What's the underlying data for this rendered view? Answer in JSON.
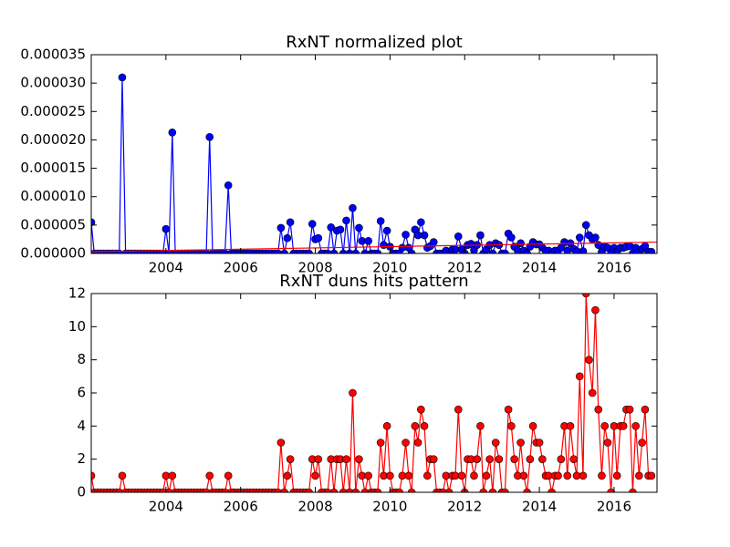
{
  "chart_data": [
    {
      "type": "line",
      "title": "RxNT normalized plot",
      "x": [
        2002.0,
        2002.08,
        2002.17,
        2002.25,
        2002.33,
        2002.42,
        2002.5,
        2002.58,
        2002.67,
        2002.75,
        2002.83,
        2002.92,
        2003.0,
        2003.08,
        2003.17,
        2003.25,
        2003.33,
        2003.42,
        2003.5,
        2003.58,
        2003.67,
        2003.75,
        2003.83,
        2003.92,
        2004.0,
        2004.08,
        2004.17,
        2004.25,
        2004.33,
        2004.42,
        2004.5,
        2004.58,
        2004.67,
        2004.75,
        2004.83,
        2004.92,
        2005.0,
        2005.08,
        2005.17,
        2005.25,
        2005.33,
        2005.42,
        2005.5,
        2005.58,
        2005.67,
        2005.75,
        2005.83,
        2005.92,
        2006.0,
        2006.08,
        2006.17,
        2006.25,
        2006.33,
        2006.42,
        2006.5,
        2006.58,
        2006.67,
        2006.75,
        2006.83,
        2006.92,
        2007.0,
        2007.08,
        2007.17,
        2007.25,
        2007.33,
        2007.42,
        2007.5,
        2007.58,
        2007.67,
        2007.75,
        2007.83,
        2007.92,
        2008.0,
        2008.08,
        2008.17,
        2008.25,
        2008.33,
        2008.42,
        2008.5,
        2008.58,
        2008.67,
        2008.75,
        2008.83,
        2008.92,
        2009.0,
        2009.08,
        2009.17,
        2009.25,
        2009.33,
        2009.42,
        2009.5,
        2009.58,
        2009.67,
        2009.75,
        2009.83,
        2009.92,
        2010.0,
        2010.08,
        2010.17,
        2010.25,
        2010.33,
        2010.42,
        2010.5,
        2010.58,
        2010.67,
        2010.75,
        2010.83,
        2010.92,
        2011.0,
        2011.08,
        2011.17,
        2011.25,
        2011.33,
        2011.42,
        2011.5,
        2011.58,
        2011.67,
        2011.75,
        2011.83,
        2011.92,
        2012.0,
        2012.08,
        2012.17,
        2012.25,
        2012.33,
        2012.42,
        2012.5,
        2012.58,
        2012.67,
        2012.75,
        2012.83,
        2012.92,
        2013.0,
        2013.08,
        2013.17,
        2013.25,
        2013.33,
        2013.42,
        2013.5,
        2013.58,
        2013.67,
        2013.75,
        2013.83,
        2013.92,
        2014.0,
        2014.08,
        2014.17,
        2014.25,
        2014.33,
        2014.42,
        2014.5,
        2014.58,
        2014.67,
        2014.75,
        2014.83,
        2014.92,
        2015.0,
        2015.08,
        2015.17,
        2015.25,
        2015.33,
        2015.42,
        2015.5,
        2015.58,
        2015.67,
        2015.75,
        2015.83,
        2015.92,
        2016.0,
        2016.08,
        2016.17,
        2016.25,
        2016.33,
        2016.42,
        2016.5,
        2016.58,
        2016.67,
        2016.75,
        2016.83,
        2016.92,
        2017.0
      ],
      "series": [
        {
          "color": "#0000ff",
          "marker": true,
          "values": [
            5.5e-06,
            0,
            0,
            0,
            0,
            0,
            0,
            0,
            0,
            0,
            3.1e-05,
            0,
            0,
            0,
            0,
            0,
            0,
            0,
            0,
            0,
            0,
            0,
            0,
            0,
            4.3e-06,
            0,
            2.13e-05,
            0,
            0,
            0,
            0,
            0,
            0,
            0,
            0,
            0,
            0,
            0,
            2.05e-05,
            0,
            0,
            0,
            0,
            0,
            1.2e-05,
            0,
            0,
            0,
            0,
            0,
            0,
            0,
            0,
            0,
            0,
            0,
            0,
            0,
            0,
            0,
            0,
            4.5e-06,
            0,
            2.7e-06,
            5.5e-06,
            0,
            0,
            0,
            0,
            0,
            0,
            5.2e-06,
            2.5e-06,
            2.7e-06,
            0,
            0,
            0,
            4.6e-06,
            0,
            4e-06,
            4.2e-06,
            0,
            5.8e-06,
            0,
            8e-06,
            0,
            4.5e-06,
            2.2e-06,
            0,
            2.2e-06,
            0,
            0,
            0,
            5.7e-06,
            1.5e-06,
            4e-06,
            1.2e-06,
            0,
            0,
            0,
            1e-06,
            3.3e-06,
            1e-06,
            0,
            4.2e-06,
            3.2e-06,
            5.5e-06,
            3.2e-06,
            1e-06,
            1.3e-06,
            2e-06,
            0,
            0,
            0,
            5e-07,
            0,
            7e-07,
            7e-07,
            3e-06,
            7e-07,
            0,
            1.5e-06,
            1.7e-06,
            6e-07,
            1.5e-06,
            3.2e-06,
            0,
            7e-07,
            1.5e-06,
            0,
            1.8e-06,
            1.5e-06,
            0,
            0,
            3.5e-06,
            2.8e-06,
            1.2e-06,
            5e-07,
            1.8e-06,
            5e-07,
            0,
            1.2e-06,
            2e-06,
            1.6e-06,
            1.6e-06,
            1e-06,
            5e-07,
            5e-07,
            0,
            5e-07,
            5e-07,
            1e-06,
            2e-06,
            5e-07,
            1.8e-06,
            8e-07,
            4e-07,
            2.8e-06,
            4e-07,
            5e-06,
            3.2e-06,
            2.5e-06,
            2.8e-06,
            1.5e-06,
            3e-07,
            1.2e-06,
            1e-06,
            0,
            1e-06,
            3e-07,
            1e-06,
            1e-06,
            1.2e-06,
            1.3e-06,
            0,
            1e-06,
            3e-07,
            8e-07,
            1.3e-06,
            3e-07,
            3e-07
          ]
        },
        {
          "color": "#ff0000",
          "marker": false,
          "x": [
            2002.0,
            2017.15
          ],
          "values": [
            3e-07,
            2e-06
          ]
        }
      ],
      "xlim": [
        2002.0,
        2017.15
      ],
      "xticks": [
        2004,
        2006,
        2008,
        2010,
        2012,
        2014,
        2016
      ],
      "ylim": [
        0,
        3.5e-05
      ],
      "yticks": [
        {
          "value": 0,
          "label": "0.000000"
        },
        {
          "value": 5e-06,
          "label": "0.000005"
        },
        {
          "value": 1e-05,
          "label": "0.000010"
        },
        {
          "value": 1.5e-05,
          "label": "0.000015"
        },
        {
          "value": 2e-05,
          "label": "0.000020"
        },
        {
          "value": 2.5e-05,
          "label": "0.000025"
        },
        {
          "value": 3e-05,
          "label": "0.000030"
        },
        {
          "value": 3.5e-05,
          "label": "0.000035"
        }
      ]
    },
    {
      "type": "line",
      "title": "RxNT duns hits pattern",
      "x": [
        2002.0,
        2002.08,
        2002.17,
        2002.25,
        2002.33,
        2002.42,
        2002.5,
        2002.58,
        2002.67,
        2002.75,
        2002.83,
        2002.92,
        2003.0,
        2003.08,
        2003.17,
        2003.25,
        2003.33,
        2003.42,
        2003.5,
        2003.58,
        2003.67,
        2003.75,
        2003.83,
        2003.92,
        2004.0,
        2004.08,
        2004.17,
        2004.25,
        2004.33,
        2004.42,
        2004.5,
        2004.58,
        2004.67,
        2004.75,
        2004.83,
        2004.92,
        2005.0,
        2005.08,
        2005.17,
        2005.25,
        2005.33,
        2005.42,
        2005.5,
        2005.58,
        2005.67,
        2005.75,
        2005.83,
        2005.92,
        2006.0,
        2006.08,
        2006.17,
        2006.25,
        2006.33,
        2006.42,
        2006.5,
        2006.58,
        2006.67,
        2006.75,
        2006.83,
        2006.92,
        2007.0,
        2007.08,
        2007.17,
        2007.25,
        2007.33,
        2007.42,
        2007.5,
        2007.58,
        2007.67,
        2007.75,
        2007.83,
        2007.92,
        2008.0,
        2008.08,
        2008.17,
        2008.25,
        2008.33,
        2008.42,
        2008.5,
        2008.58,
        2008.67,
        2008.75,
        2008.83,
        2008.92,
        2009.0,
        2009.08,
        2009.17,
        2009.25,
        2009.33,
        2009.42,
        2009.5,
        2009.58,
        2009.67,
        2009.75,
        2009.83,
        2009.92,
        2010.0,
        2010.08,
        2010.17,
        2010.25,
        2010.33,
        2010.42,
        2010.5,
        2010.58,
        2010.67,
        2010.75,
        2010.83,
        2010.92,
        2011.0,
        2011.08,
        2011.17,
        2011.25,
        2011.33,
        2011.42,
        2011.5,
        2011.58,
        2011.67,
        2011.75,
        2011.83,
        2011.92,
        2012.0,
        2012.08,
        2012.17,
        2012.25,
        2012.33,
        2012.42,
        2012.5,
        2012.58,
        2012.67,
        2012.75,
        2012.83,
        2012.92,
        2013.0,
        2013.08,
        2013.17,
        2013.25,
        2013.33,
        2013.42,
        2013.5,
        2013.58,
        2013.67,
        2013.75,
        2013.83,
        2013.92,
        2014.0,
        2014.08,
        2014.17,
        2014.25,
        2014.33,
        2014.42,
        2014.5,
        2014.58,
        2014.67,
        2014.75,
        2014.83,
        2014.92,
        2015.0,
        2015.08,
        2015.17,
        2015.25,
        2015.33,
        2015.42,
        2015.5,
        2015.58,
        2015.67,
        2015.75,
        2015.83,
        2015.92,
        2016.0,
        2016.08,
        2016.17,
        2016.25,
        2016.33,
        2016.42,
        2016.5,
        2016.58,
        2016.67,
        2016.75,
        2016.83,
        2016.92,
        2017.0
      ],
      "series": [
        {
          "color": "#ff0000",
          "marker": true,
          "values": [
            1,
            0,
            0,
            0,
            0,
            0,
            0,
            0,
            0,
            0,
            1,
            0,
            0,
            0,
            0,
            0,
            0,
            0,
            0,
            0,
            0,
            0,
            0,
            0,
            1,
            0,
            1,
            0,
            0,
            0,
            0,
            0,
            0,
            0,
            0,
            0,
            0,
            0,
            1,
            0,
            0,
            0,
            0,
            0,
            1,
            0,
            0,
            0,
            0,
            0,
            0,
            0,
            0,
            0,
            0,
            0,
            0,
            0,
            0,
            0,
            0,
            3,
            0,
            1,
            2,
            0,
            0,
            0,
            0,
            0,
            0,
            2,
            1,
            2,
            0,
            0,
            0,
            2,
            0,
            2,
            2,
            0,
            2,
            0,
            6,
            0,
            2,
            1,
            0,
            1,
            0,
            0,
            0,
            3,
            1,
            4,
            1,
            0,
            0,
            0,
            1,
            3,
            1,
            0,
            4,
            3,
            5,
            4,
            1,
            2,
            2,
            0,
            0,
            0,
            1,
            0,
            1,
            1,
            5,
            1,
            0,
            2,
            2,
            1,
            2,
            4,
            0,
            1,
            2,
            0,
            3,
            2,
            0,
            0,
            5,
            4,
            2,
            1,
            3,
            1,
            0,
            2,
            4,
            3,
            3,
            2,
            1,
            1,
            0,
            1,
            1,
            2,
            4,
            1,
            4,
            2,
            1,
            7,
            1,
            12,
            8,
            6,
            11,
            5,
            1,
            4,
            3,
            0,
            4,
            1,
            4,
            4,
            5,
            5,
            0,
            4,
            1,
            3,
            5,
            1,
            1
          ]
        }
      ],
      "xlim": [
        2002.0,
        2017.15
      ],
      "xticks": [
        2004,
        2006,
        2008,
        2010,
        2012,
        2014,
        2016
      ],
      "ylim": [
        0,
        12
      ],
      "yticks": [
        0,
        2,
        4,
        6,
        8,
        10,
        12
      ]
    }
  ]
}
